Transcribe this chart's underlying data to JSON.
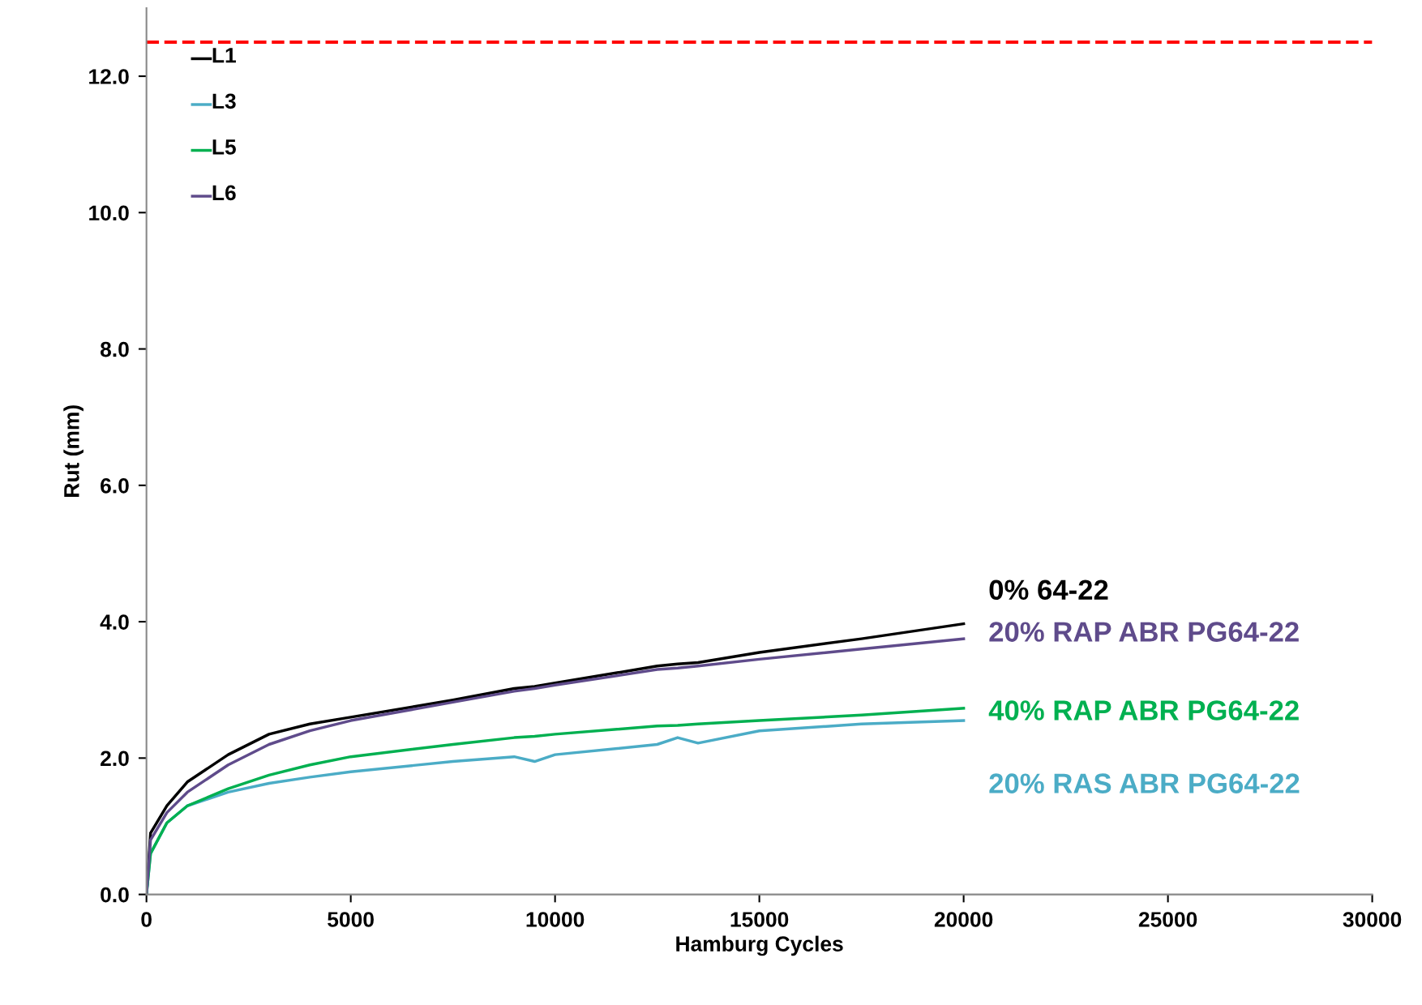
{
  "chart_data": {
    "type": "line",
    "xlabel": "Hamburg Cycles",
    "ylabel": "Rut (mm)",
    "x": [
      0,
      100,
      500,
      1000,
      2000,
      3000,
      4000,
      5000,
      7500,
      9000,
      9500,
      10000,
      12500,
      13000,
      13500,
      15000,
      17500,
      20000
    ],
    "series": [
      {
        "name": "L1",
        "color": "#000000",
        "values": [
          0,
          0.9,
          1.3,
          1.65,
          2.05,
          2.35,
          2.5,
          2.6,
          2.85,
          3.02,
          3.05,
          3.1,
          3.35,
          3.38,
          3.4,
          3.55,
          3.75,
          3.97
        ]
      },
      {
        "name": "L3",
        "color": "#4bacc6",
        "values": [
          0,
          0.6,
          1.05,
          1.3,
          1.5,
          1.63,
          1.72,
          1.8,
          1.95,
          2.02,
          1.95,
          2.05,
          2.2,
          2.3,
          2.22,
          2.4,
          2.5,
          2.55
        ]
      },
      {
        "name": "L5",
        "color": "#00b050",
        "values": [
          0,
          0.6,
          1.05,
          1.3,
          1.55,
          1.75,
          1.9,
          2.02,
          2.2,
          2.3,
          2.32,
          2.35,
          2.47,
          2.48,
          2.5,
          2.55,
          2.63,
          2.73
        ]
      },
      {
        "name": "L6",
        "color": "#5f4b8b",
        "values": [
          0,
          0.8,
          1.2,
          1.5,
          1.9,
          2.2,
          2.4,
          2.55,
          2.82,
          2.98,
          3.02,
          3.07,
          3.3,
          3.32,
          3.35,
          3.45,
          3.6,
          3.75
        ]
      }
    ],
    "annotations": [
      "0% 64-22",
      "20% RAS ABR PG64-22",
      "40% RAP ABR PG64-22",
      "20% RAP ABR PG64-22"
    ],
    "ref_lines": [
      {
        "axis": "y",
        "value": 12.5,
        "color": "#ff0000",
        "line_style": "dashed"
      }
    ],
    "xlim": [
      0,
      30000
    ],
    "xticks": [
      0,
      5000,
      10000,
      15000,
      20000,
      25000,
      30000
    ],
    "ylim": [
      0,
      13
    ],
    "yticks": [
      {
        "value": 0,
        "label": "0.0"
      },
      {
        "value": 2,
        "label": "2.0"
      },
      {
        "value": 4,
        "label": "4.0"
      },
      {
        "value": 6,
        "label": "6.0"
      },
      {
        "value": 8,
        "label": "8.0"
      },
      {
        "value": 10,
        "label": "10.0"
      },
      {
        "value": 12,
        "label": "12.0"
      }
    ],
    "grid": false,
    "legend": "top left",
    "marker": "none",
    "line_style": "solid"
  }
}
